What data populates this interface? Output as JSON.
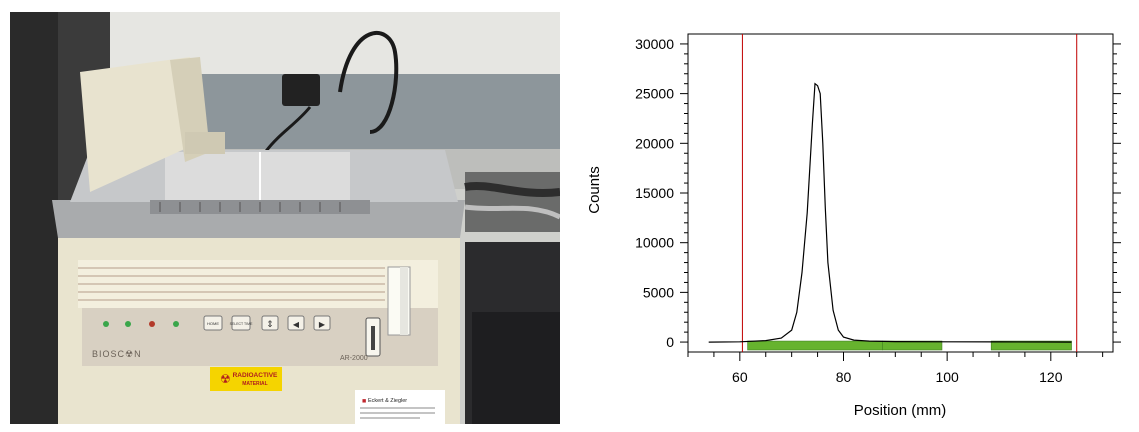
{
  "photo": {
    "brand": "BIOSC☢N",
    "model": "AR-2000",
    "warning_line1": "RADIOACTIVE",
    "warning_line2": "MATERIAL",
    "sticker_title": "Eckert & Ziegler",
    "buttons": {
      "b1": "HOME",
      "b2": "SELECT TIME"
    }
  },
  "colors": {
    "trace": "#000000",
    "limit_lines": "#c00000",
    "regions": "#66b32e",
    "warning_label": "#f5d400"
  },
  "chart_data": {
    "type": "line",
    "xlabel": "Position (mm)",
    "ylabel": "Counts",
    "xlim": [
      50,
      132
    ],
    "ylim": [
      -1000,
      31000
    ],
    "xticks": [
      60,
      80,
      100,
      120
    ],
    "xtick_labels": [
      "60",
      "80",
      "100",
      "120"
    ],
    "yticks": [
      0,
      5000,
      10000,
      15000,
      20000,
      25000,
      30000
    ],
    "ytick_labels": [
      "0",
      "5000",
      "10000",
      "15000",
      "20000",
      "25000",
      "30000"
    ],
    "series": [
      {
        "x": [
          54,
          60,
          65,
          68,
          70,
          71,
          72,
          73,
          73.5,
          74,
          74.5,
          75,
          75.5,
          76,
          76.5,
          77,
          78,
          79,
          80,
          82,
          85,
          90,
          100,
          110,
          120,
          124
        ],
        "y": [
          0,
          30,
          150,
          400,
          1200,
          3000,
          7000,
          13000,
          17500,
          22000,
          26000,
          25800,
          25000,
          20000,
          13500,
          8000,
          3200,
          1200,
          500,
          200,
          100,
          50,
          30,
          20,
          10,
          0
        ]
      }
    ],
    "vertical_lines": [
      60.5,
      125
    ],
    "regions": [
      {
        "x0": 61.5,
        "x1": 87.5
      },
      {
        "x0": 87.5,
        "x1": 99
      },
      {
        "x0": 108.5,
        "x1": 124
      }
    ]
  }
}
